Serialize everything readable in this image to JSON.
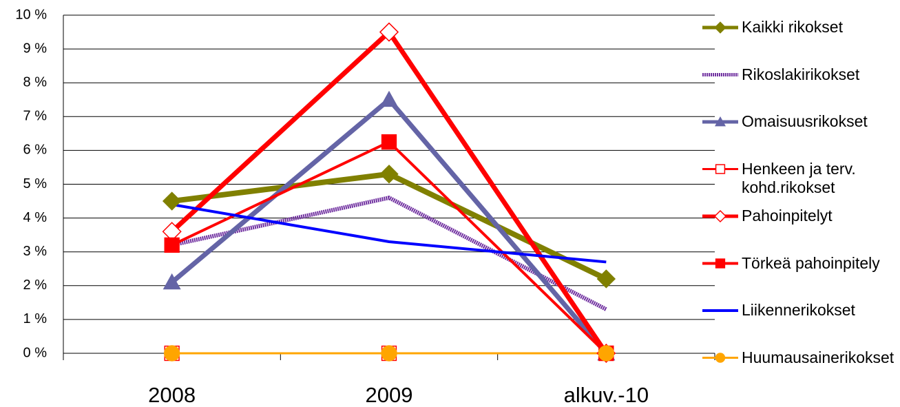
{
  "chart_data": {
    "type": "line",
    "categories": [
      "2008",
      "2009",
      "alkuv.-10"
    ],
    "ylim": [
      0,
      10
    ],
    "yticks": [
      {
        "value": 0,
        "label": "0 %"
      },
      {
        "value": 1,
        "label": "1 %"
      },
      {
        "value": 2,
        "label": "2 %"
      },
      {
        "value": 3,
        "label": "3 %"
      },
      {
        "value": 4,
        "label": "4 %"
      },
      {
        "value": 5,
        "label": "5 %"
      },
      {
        "value": 6,
        "label": "6 %"
      },
      {
        "value": 7,
        "label": "7 %"
      },
      {
        "value": 8,
        "label": "8 %"
      },
      {
        "value": 9,
        "label": "9 %"
      },
      {
        "value": 10,
        "label": "10 %"
      }
    ],
    "grid": true,
    "legend": "right",
    "series": [
      {
        "name": "Kaikki rikokset",
        "color": "#808000",
        "marker": "diamond",
        "width": 8,
        "values": [
          4.5,
          5.3,
          2.2
        ]
      },
      {
        "name": "Rikoslakirikokset",
        "color": "#7030a0",
        "marker": "none",
        "dash": true,
        "width": 6,
        "values": [
          3.2,
          4.6,
          1.3
        ]
      },
      {
        "name": "Omaisuusrikokset",
        "color": "#6464a6",
        "marker": "triangle",
        "width": 7,
        "values": [
          2.1,
          7.5,
          0
        ]
      },
      {
        "name": "Henkeen ja terv. kohd.rikokset",
        "color": "#ff0000",
        "marker": "square-open",
        "width": 3,
        "values": [
          0,
          0,
          0
        ]
      },
      {
        "name": "Pahoinpitelyt",
        "color": "#ff0000",
        "marker": "diamond-open",
        "width": 7,
        "values": [
          3.6,
          9.5,
          0
        ]
      },
      {
        "name": "Törkeä pahoinpitely",
        "color": "#ff0000",
        "marker": "square",
        "width": 4,
        "values": [
          3.2,
          6.25,
          0
        ]
      },
      {
        "name": "Liikennerikokset",
        "color": "#0000ff",
        "marker": "none",
        "width": 4,
        "values": [
          4.4,
          3.3,
          2.7
        ]
      },
      {
        "name": "Huumausainerikokset",
        "color": "#ffa500",
        "marker": "circle",
        "width": 3,
        "values": [
          0,
          0,
          0
        ]
      }
    ]
  }
}
